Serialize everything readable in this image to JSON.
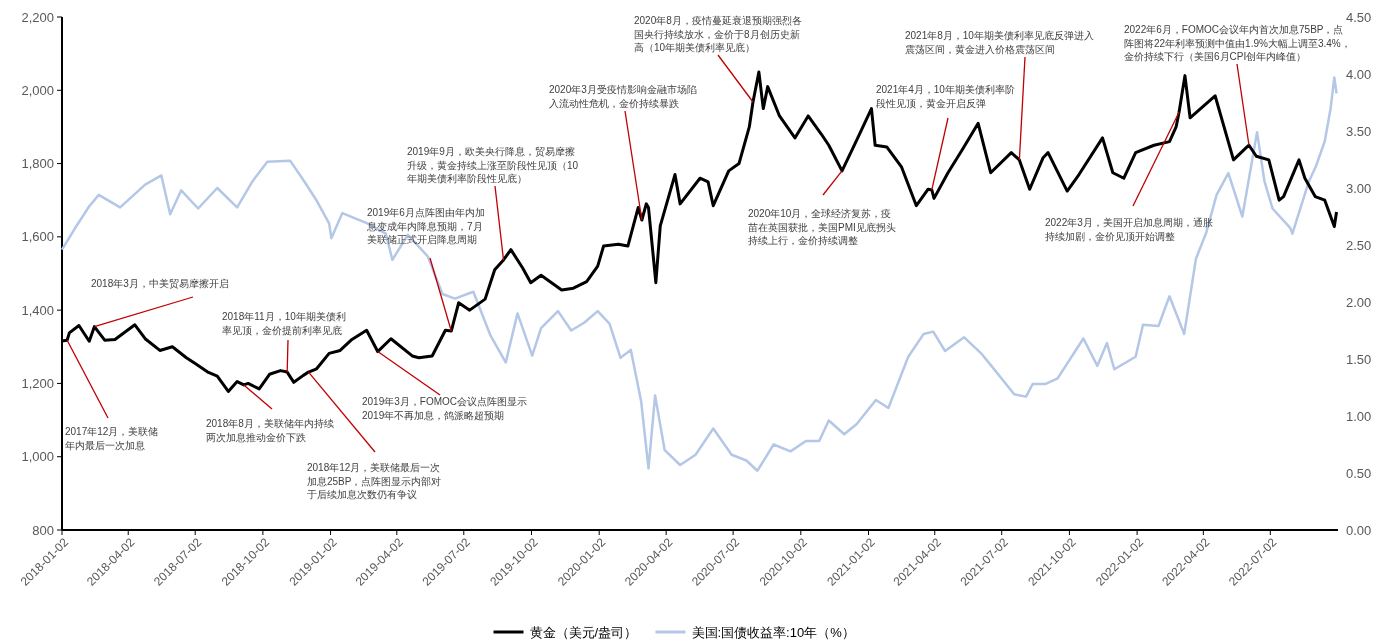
{
  "chart_data": {
    "type": "line",
    "xlim": [
      "2018-01-02",
      "2022-10-02"
    ],
    "xticks": [
      "2018-01-02",
      "2018-04-02",
      "2018-07-02",
      "2018-10-02",
      "2019-01-02",
      "2019-04-02",
      "2019-07-02",
      "2019-10-02",
      "2020-01-02",
      "2020-04-02",
      "2020-07-02",
      "2020-10-02",
      "2021-01-02",
      "2021-04-02",
      "2021-07-02",
      "2021-10-02",
      "2022-01-02",
      "2022-04-02",
      "2022-07-02"
    ],
    "ylim": [
      800,
      2200
    ],
    "yticks": [
      {
        "value": 800,
        "label": "800"
      },
      {
        "value": 1000,
        "label": "1,000"
      },
      {
        "value": 1200,
        "label": "1,200"
      },
      {
        "value": 1400,
        "label": "1,400"
      },
      {
        "value": 1600,
        "label": "1,600"
      },
      {
        "value": 1800,
        "label": "1,800"
      },
      {
        "value": 2000,
        "label": "2,000"
      },
      {
        "value": 2200,
        "label": "2,200"
      }
    ],
    "y2lim": [
      0,
      4.5
    ],
    "y2ticks": [
      {
        "value": 0,
        "label": "0.00"
      },
      {
        "value": 0.5,
        "label": "0.50"
      },
      {
        "value": 1,
        "label": "1.00"
      },
      {
        "value": 1.5,
        "label": "1.50"
      },
      {
        "value": 2,
        "label": "2.00"
      },
      {
        "value": 2.5,
        "label": "2.50"
      },
      {
        "value": 3,
        "label": "3.00"
      },
      {
        "value": 3.5,
        "label": "3.50"
      },
      {
        "value": 4,
        "label": "4.00"
      },
      {
        "value": 4.5,
        "label": "4.50"
      }
    ],
    "legend": "bottom",
    "series": [
      {
        "name": "美国:国债收益率:10年（%）",
        "color": "#b4c7e7",
        "axis": "y2",
        "x": [
          "2018-01-02",
          "2018-01-19",
          "2018-02-08",
          "2018-02-21",
          "2018-03-22",
          "2018-04-25",
          "2018-05-17",
          "2018-05-29",
          "2018-06-13",
          "2018-07-06",
          "2018-08-01",
          "2018-08-28",
          "2018-09-18",
          "2018-10-08",
          "2018-11-08",
          "2018-11-28",
          "2018-12-14",
          "2018-12-31",
          "2019-01-03",
          "2019-01-18",
          "2019-02-21",
          "2019-03-18",
          "2019-03-27",
          "2019-04-17",
          "2019-05-14",
          "2019-06-03",
          "2019-06-20",
          "2019-07-15",
          "2019-08-07",
          "2019-08-28",
          "2019-09-13",
          "2019-10-03",
          "2019-10-15",
          "2019-11-07",
          "2019-11-25",
          "2019-12-13",
          "2019-12-31",
          "2020-01-16",
          "2020-01-31",
          "2020-02-14",
          "2020-02-28",
          "2020-03-09",
          "2020-03-18",
          "2020-03-31",
          "2020-04-21",
          "2020-05-12",
          "2020-06-05",
          "2020-06-30",
          "2020-07-20",
          "2020-08-04",
          "2020-08-26",
          "2020-09-18",
          "2020-10-09",
          "2020-10-27",
          "2020-11-09",
          "2020-11-30",
          "2020-12-17",
          "2021-01-12",
          "2021-01-29",
          "2021-02-25",
          "2021-03-18",
          "2021-03-31",
          "2021-04-16",
          "2021-05-12",
          "2021-06-04",
          "2021-06-18",
          "2021-07-19",
          "2021-08-04",
          "2021-08-13",
          "2021-08-30",
          "2021-09-16",
          "2021-10-21",
          "2021-11-09",
          "2021-11-22",
          "2021-12-02",
          "2021-12-31",
          "2022-01-10",
          "2022-01-31",
          "2022-02-15",
          "2022-03-07",
          "2022-03-23",
          "2022-04-06",
          "2022-04-20",
          "2022-05-06",
          "2022-05-25",
          "2022-06-14",
          "2022-06-24",
          "2022-07-05",
          "2022-07-29",
          "2022-08-01",
          "2022-08-23",
          "2022-09-02",
          "2022-09-14",
          "2022-09-22",
          "2022-09-27",
          "2022-09-30"
        ],
        "values": [
          2.46,
          2.64,
          2.84,
          2.94,
          2.83,
          3.03,
          3.11,
          2.77,
          2.98,
          2.82,
          3.0,
          2.83,
          3.06,
          3.23,
          3.24,
          3.05,
          2.89,
          2.69,
          2.56,
          2.78,
          2.69,
          2.6,
          2.37,
          2.59,
          2.4,
          2.07,
          2.03,
          2.09,
          1.71,
          1.47,
          1.9,
          1.53,
          1.77,
          1.92,
          1.75,
          1.82,
          1.92,
          1.81,
          1.51,
          1.58,
          1.13,
          0.54,
          1.18,
          0.7,
          0.57,
          0.66,
          0.89,
          0.66,
          0.61,
          0.52,
          0.75,
          0.69,
          0.78,
          0.78,
          0.96,
          0.84,
          0.93,
          1.14,
          1.07,
          1.52,
          1.72,
          1.74,
          1.57,
          1.69,
          1.55,
          1.44,
          1.19,
          1.17,
          1.28,
          1.28,
          1.33,
          1.68,
          1.44,
          1.64,
          1.41,
          1.52,
          1.8,
          1.79,
          2.05,
          1.72,
          2.38,
          2.61,
          2.94,
          3.13,
          2.75,
          3.49,
          3.06,
          2.82,
          2.65,
          2.6,
          3.05,
          3.19,
          3.41,
          3.7,
          3.97,
          3.83
        ]
      },
      {
        "name": "黄金（美元/盎司）",
        "color": "#000000",
        "x": [
          "2018-01-02",
          "2018-01-09",
          "2018-01-12",
          "2018-01-25",
          "2018-02-08",
          "2018-02-15",
          "2018-03-01",
          "2018-03-15",
          "2018-04-11",
          "2018-04-25",
          "2018-05-15",
          "2018-06-01",
          "2018-06-20",
          "2018-07-03",
          "2018-07-20",
          "2018-08-01",
          "2018-08-16",
          "2018-08-28",
          "2018-09-06",
          "2018-09-12",
          "2018-09-27",
          "2018-10-11",
          "2018-10-26",
          "2018-11-04",
          "2018-11-13",
          "2018-11-26",
          "2018-12-03",
          "2018-12-14",
          "2018-12-31",
          "2019-01-15",
          "2019-01-31",
          "2019-02-20",
          "2019-03-07",
          "2019-03-25",
          "2019-04-23",
          "2019-05-02",
          "2019-05-20",
          "2019-06-07",
          "2019-06-15",
          "2019-06-25",
          "2019-07-10",
          "2019-07-31",
          "2019-08-13",
          "2019-08-25",
          "2019-09-04",
          "2019-09-20",
          "2019-10-01",
          "2019-10-15",
          "2019-11-12",
          "2019-11-28",
          "2019-12-16",
          "2019-12-31",
          "2020-01-08",
          "2020-01-28",
          "2020-02-10",
          "2020-02-24",
          "2020-02-29",
          "2020-03-06",
          "2020-03-09",
          "2020-03-19",
          "2020-03-25",
          "2020-04-14",
          "2020-04-21",
          "2020-05-18",
          "2020-05-29",
          "2020-06-05",
          "2020-06-26",
          "2020-07-10",
          "2020-07-24",
          "2020-07-29",
          "2020-08-06",
          "2020-08-12",
          "2020-08-18",
          "2020-09-03",
          "2020-09-24",
          "2020-10-12",
          "2020-10-30",
          "2020-11-09",
          "2020-11-27",
          "2020-12-16",
          "2021-01-06",
          "2021-01-11",
          "2021-01-27",
          "2021-02-16",
          "2021-03-08",
          "2021-03-24",
          "2021-03-29",
          "2021-04-01",
          "2021-04-20",
          "2021-05-10",
          "2021-05-31",
          "2021-06-17",
          "2021-07-15",
          "2021-07-26",
          "2021-08-09",
          "2021-08-27",
          "2021-09-03",
          "2021-09-29",
          "2021-10-15",
          "2021-11-16",
          "2021-11-30",
          "2021-12-15",
          "2021-12-31",
          "2022-01-25",
          "2022-02-15",
          "2022-02-24",
          "2022-02-28",
          "2022-03-08",
          "2022-03-15",
          "2022-04-18",
          "2022-05-13",
          "2022-05-31",
          "2022-06-03",
          "2022-06-13",
          "2022-06-30",
          "2022-07-14",
          "2022-07-20",
          "2022-08-10",
          "2022-08-18",
          "2022-09-01",
          "2022-09-14",
          "2022-09-27",
          "2022-09-30"
        ],
        "values": [
          1316,
          1318,
          1338,
          1358,
          1315,
          1355,
          1318,
          1320,
          1360,
          1322,
          1290,
          1300,
          1270,
          1253,
          1230,
          1220,
          1178,
          1205,
          1196,
          1200,
          1185,
          1225,
          1235,
          1231,
          1203,
          1222,
          1231,
          1240,
          1282,
          1290,
          1320,
          1345,
          1287,
          1322,
          1275,
          1270,
          1275,
          1345,
          1343,
          1420,
          1400,
          1430,
          1510,
          1537,
          1565,
          1515,
          1475,
          1495,
          1455,
          1460,
          1478,
          1520,
          1575,
          1580,
          1575,
          1680,
          1646,
          1690,
          1680,
          1475,
          1630,
          1770,
          1690,
          1760,
          1750,
          1685,
          1780,
          1800,
          1900,
          1968,
          2050,
          1950,
          2010,
          1930,
          1870,
          1930,
          1880,
          1850,
          1780,
          1860,
          1950,
          1850,
          1845,
          1790,
          1685,
          1730,
          1728,
          1705,
          1775,
          1840,
          1910,
          1775,
          1830,
          1810,
          1730,
          1815,
          1830,
          1725,
          1770,
          1870,
          1775,
          1760,
          1830,
          1850,
          1860,
          1900,
          1940,
          2040,
          1925,
          1985,
          1810,
          1845,
          1850,
          1820,
          1810,
          1700,
          1710,
          1810,
          1760,
          1710,
          1700,
          1628,
          1668
        ]
      }
    ],
    "annotations": [
      {
        "text": "2017年12月，美联储年内最后一次加息",
        "x": "2018-01-09",
        "y": 1318
      },
      {
        "text": "2018年3月，中美贸易摩擦开启",
        "x": "2018-02-15",
        "y": 1355
      },
      {
        "text": "2018年11月，10年期美债利率见顶，金价提前利率见底",
        "x": "2018-11-04",
        "y": 1231
      },
      {
        "text": "2018年8月，美联储年内持续两次加息推动金价下跌",
        "x": "2018-09-06",
        "y": 1196
      },
      {
        "text": "2018年12月，美联储最后一次加息25BP，点阵图显示内部对于后续加息次数仍有争议",
        "x": "2018-12-03",
        "y": 1231
      },
      {
        "text": "2019年3月，FOMOC会议点阵图显示2019年不再加息，鸽派略超预期",
        "x": "2019-03-07",
        "y": 1287
      },
      {
        "text": "2019年6月点阵图由年内加息变成年内降息预期，7月美联储正式开启降息周期",
        "x": "2019-06-15",
        "y": 1343
      },
      {
        "text": "2019年9月，欧美央行降息，贸易摩擦升级，黄金持续上涨至阶段性见顶（10年期美债利率阶段性见底）",
        "x": "2019-08-25",
        "y": 1537
      },
      {
        "text": "2020年3月受疫情影响金融市场陷入流动性危机，金价持续暴跌",
        "x": "2020-02-29",
        "y": 1646
      },
      {
        "text": "2020年8月，疫情蔓延衰退预期强烈各国央行持续放水，金价于8月创历史新高（10年期美债利率见底）",
        "x": "2020-07-29",
        "y": 1968
      },
      {
        "text": "2020年10月，全球经济复苏，疫苗在英国获批，美国PMI见底拐头持续上行，金价持续调整",
        "x": "2020-11-27",
        "y": 1780
      },
      {
        "text": "2021年4月，10年期美债利率阶段性见顶，黄金开启反弹",
        "x": "2021-03-29",
        "y": 1728
      },
      {
        "text": "2021年8月，10年期美债利率见底反弹进入震荡区间，黄金进入价格震荡区间",
        "x": "2021-07-26",
        "y": 1810
      },
      {
        "text": "2022年3月，美国开启加息周期，通胀持续加剧，金价见顶开始调整",
        "x": "2022-02-28",
        "y": 1940
      },
      {
        "text": "2022年6月，FOMOC会议年内首次加息75BP，点阵图将22年利率预测中值由1.9%大幅上调至3.4%，金价持续下行（美国6月CPI创年内峰值）",
        "x": "2022-06-03",
        "y": 1850
      }
    ]
  }
}
